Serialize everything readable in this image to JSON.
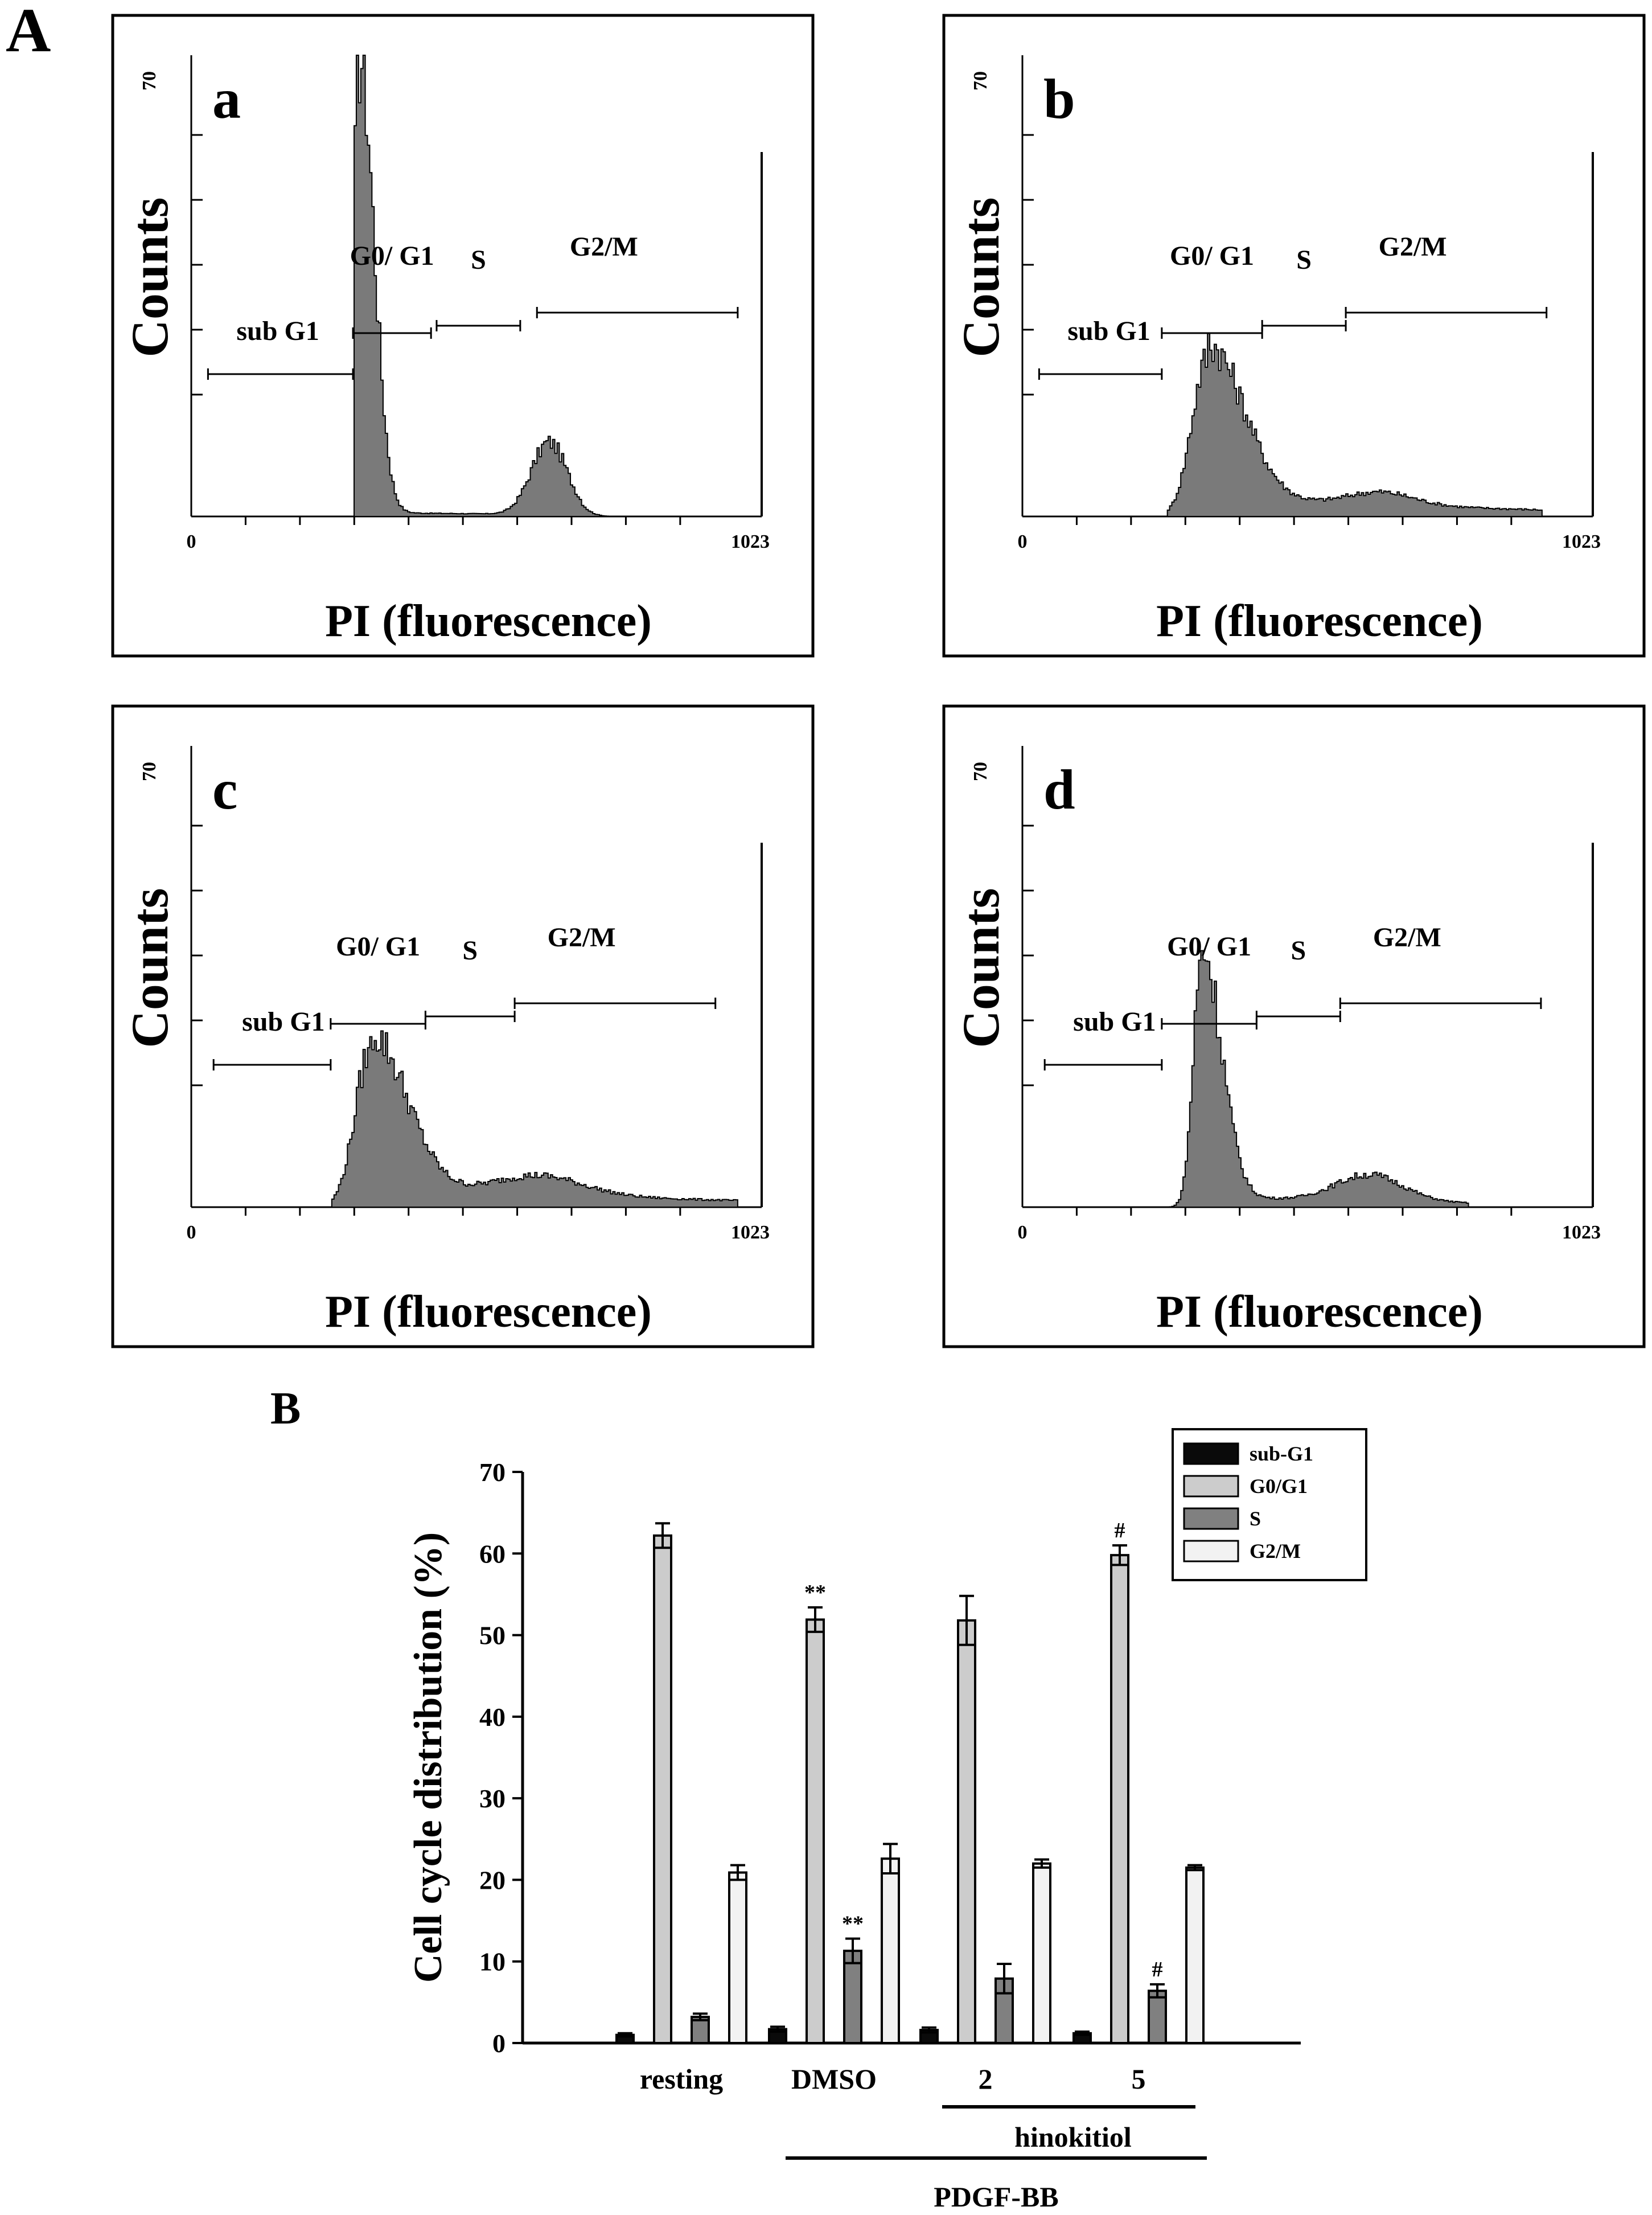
{
  "figure": {
    "panel_A_label": "A",
    "panel_B_label": "B"
  },
  "histograms": [
    {
      "letter": "a",
      "ylabel": "Counts",
      "xlabel": "PI (fluorescence)",
      "y_tick_label": "70",
      "x_min_label": "0",
      "x_max_label": "1023",
      "gates": {
        "subG1": "sub G1",
        "g0g1": "G0/ G1",
        "s": "S",
        "g2m": "G2/M"
      },
      "g1_peak": 300,
      "g1_height": 70,
      "g1_width": 16,
      "g2_peak": 640,
      "g2_height": 11,
      "g2_width": 32,
      "s_level": 0.6,
      "s_extend": 700,
      "end": 780,
      "start": 290,
      "gate_ranges": {
        "subG1": [
          30,
          290
        ],
        "g0g1": [
          290,
          430
        ],
        "s": [
          440,
          590
        ],
        "g2m": [
          620,
          980
        ]
      }
    },
    {
      "letter": "b",
      "ylabel": "Counts",
      "xlabel": "PI (fluorescence)",
      "y_tick_label": "70",
      "x_min_label": "0",
      "x_max_label": "1023",
      "gates": {
        "subG1": "sub G1",
        "g0g1": "G0/ G1",
        "s": "S",
        "g2m": "G2/M"
      },
      "g1_peak": 330,
      "g1_height": 24,
      "g1_width": 40,
      "g2_peak": 640,
      "g2_height": 2,
      "g2_width": 60,
      "s_level": 2.5,
      "s_extend": 930,
      "end": 930,
      "start": 260,
      "gate_ranges": {
        "subG1": [
          30,
          250
        ],
        "g0g1": [
          250,
          430
        ],
        "s": [
          430,
          580
        ],
        "g2m": [
          580,
          940
        ]
      }
    },
    {
      "letter": "c",
      "ylabel": "Counts",
      "xlabel": "PI (fluorescence)",
      "y_tick_label": "70",
      "x_min_label": "0",
      "x_max_label": "1023",
      "gates": {
        "subG1": "sub G1",
        "g0g1": "G0/ G1",
        "s": "S",
        "g2m": "G2/M"
      },
      "g1_peak": 320,
      "g1_height": 24,
      "g1_width": 40,
      "g2_peak": 620,
      "g2_height": 3,
      "g2_width": 80,
      "s_level": 2.5,
      "s_extend": 980,
      "end": 1000,
      "start": 250,
      "gate_ranges": {
        "subG1": [
          40,
          250
        ],
        "g0g1": [
          250,
          420
        ],
        "s": [
          420,
          580
        ],
        "g2m": [
          580,
          940
        ]
      }
    },
    {
      "letter": "d",
      "ylabel": "Counts",
      "xlabel": "PI (fluorescence)",
      "y_tick_label": "70",
      "x_min_label": "0",
      "x_max_label": "1023",
      "gates": {
        "subG1": "sub G1",
        "g0g1": "G0/ G1",
        "s": "S",
        "g2m": "G2/M"
      },
      "g1_peak": 320,
      "g1_height": 38,
      "g1_width": 22,
      "g2_peak": 620,
      "g2_height": 4,
      "g2_width": 60,
      "s_level": 1.5,
      "s_extend": 800,
      "end": 880,
      "start": 260,
      "gate_ranges": {
        "subG1": [
          40,
          250
        ],
        "g0g1": [
          250,
          420
        ],
        "s": [
          420,
          570
        ],
        "g2m": [
          570,
          930
        ]
      }
    }
  ],
  "chart_data": {
    "type": "bar",
    "ylabel": "Cell cycle distribution (%)",
    "ylim": [
      0,
      70
    ],
    "yticks": [
      0,
      10,
      20,
      30,
      40,
      50,
      60,
      70
    ],
    "categories": [
      "resting",
      "DMSO",
      "2",
      "5"
    ],
    "series": [
      {
        "name": "sub-G1",
        "color": "#0a0a0a",
        "values": [
          1.0,
          1.7,
          1.6,
          1.2
        ],
        "errors": [
          0.2,
          0.3,
          0.3,
          0.2
        ],
        "annotations": [
          "",
          "",
          "",
          ""
        ]
      },
      {
        "name": "G0/G1",
        "color": "#cccccc",
        "values": [
          62.2,
          51.9,
          51.8,
          59.8
        ],
        "errors": [
          1.5,
          1.5,
          3.0,
          1.2
        ],
        "annotations": [
          "",
          "**",
          "",
          "#"
        ]
      },
      {
        "name": "S",
        "color": "#808080",
        "values": [
          3.2,
          11.3,
          7.9,
          6.4
        ],
        "errors": [
          0.4,
          1.5,
          1.8,
          0.8
        ],
        "annotations": [
          "",
          "**",
          "",
          "#"
        ]
      },
      {
        "name": "G2/M",
        "color": "#f2f2f2",
        "values": [
          20.9,
          22.6,
          22.0,
          21.5
        ],
        "errors": [
          0.9,
          1.8,
          0.5,
          0.3
        ],
        "annotations": [
          "",
          "",
          "",
          ""
        ]
      }
    ],
    "groups": [
      {
        "label": "hinokitiol",
        "categories": [
          "2",
          "5"
        ]
      },
      {
        "label": "PDGF-BB",
        "categories": [
          "DMSO",
          "2",
          "5"
        ]
      }
    ],
    "legend_position": "top-right"
  }
}
